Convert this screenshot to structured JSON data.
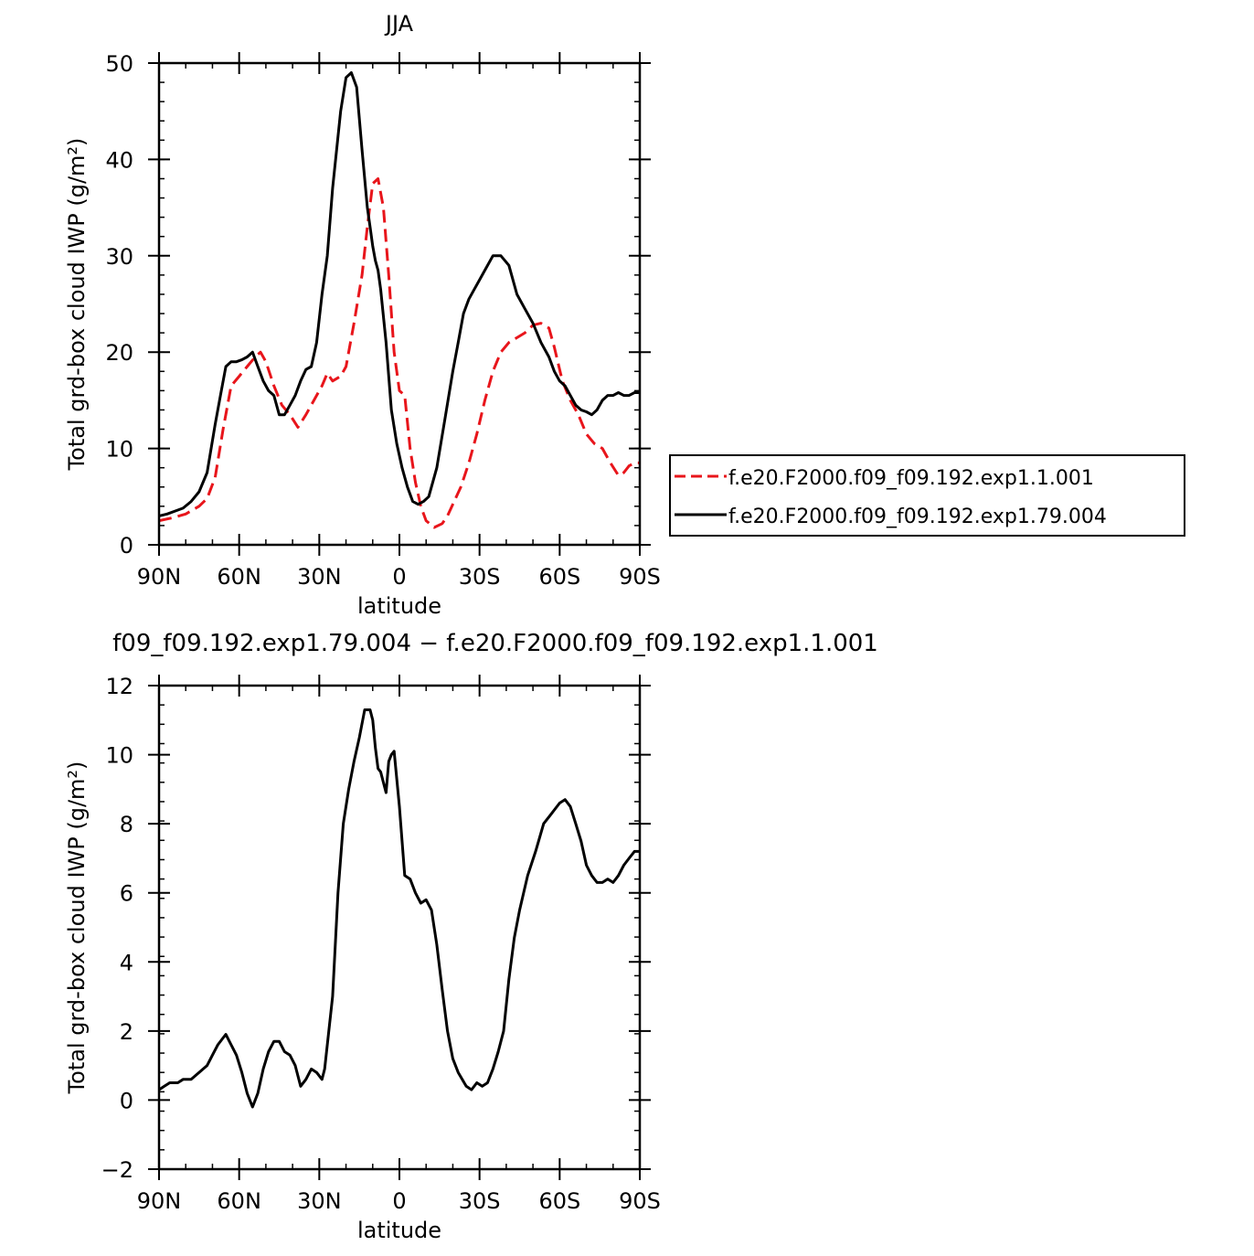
{
  "figure": {
    "top_title": "JJA",
    "bottom_title": "f09_f09.192.exp1.79.004 − f.e20.F2000.f09_f09.192.exp1.1.001"
  },
  "chart_data": [
    {
      "type": "line",
      "title": "JJA",
      "xlabel": "latitude",
      "ylabel": "Total grd-box cloud IWP (g/m²)",
      "xlim": [
        90,
        -90
      ],
      "ylim": [
        0,
        50
      ],
      "xticks": [
        90,
        60,
        30,
        0,
        -30,
        -60,
        -90
      ],
      "xtick_labels": [
        "90N",
        "60N",
        "30N",
        "0",
        "30S",
        "60S",
        "90S"
      ],
      "yticks": [
        0,
        10,
        20,
        30,
        40,
        50
      ],
      "ytick_labels": [
        "0",
        "10",
        "20",
        "30",
        "40",
        "50"
      ],
      "legend_position": "right",
      "series": [
        {
          "name": "f.e20.F2000.f09_f09.192.exp1.1.001",
          "color": "#e8151b",
          "dash": "dashed",
          "x": [
            90,
            85,
            80,
            75,
            72,
            69,
            66,
            63,
            60,
            57,
            54,
            52,
            50,
            47,
            44,
            41,
            38,
            35,
            32,
            29,
            27,
            25,
            22,
            20,
            17,
            14,
            12,
            10,
            8,
            6,
            4,
            2,
            0,
            -2,
            -4,
            -6,
            -8,
            -10,
            -13,
            -16,
            -18,
            -20,
            -23,
            -26,
            -29,
            -32,
            -35,
            -38,
            -41,
            -44,
            -47,
            -50,
            -53,
            -56,
            -58,
            -61,
            -64,
            -67,
            -70,
            -73,
            -76,
            -79,
            -82,
            -84,
            -86,
            -88,
            -90
          ],
          "y": [
            2.5,
            2.8,
            3.2,
            4.0,
            4.8,
            7.0,
            12.0,
            16.5,
            17.5,
            18.5,
            19.5,
            20.0,
            19.0,
            16.5,
            14.5,
            13.5,
            12.2,
            13.5,
            15.0,
            16.5,
            17.8,
            17.0,
            17.5,
            18.5,
            23.0,
            28.0,
            33.0,
            37.5,
            38.0,
            35.0,
            28.0,
            20.0,
            16.0,
            15.5,
            10.0,
            6.5,
            4.0,
            2.5,
            1.8,
            2.2,
            3.0,
            4.2,
            6.0,
            8.5,
            11.5,
            15.0,
            18.0,
            20.0,
            21.0,
            21.5,
            22.0,
            22.8,
            23.0,
            22.5,
            20.5,
            17.0,
            15.0,
            13.5,
            11.5,
            10.5,
            10.0,
            8.5,
            7.2,
            7.5,
            8.2,
            8.5,
            8.5
          ]
        },
        {
          "name": "f.e20.F2000.f09_f09.192.exp1.79.004",
          "color": "#000000",
          "dash": "solid",
          "x": [
            90,
            87,
            84,
            81,
            78,
            75,
            72,
            69,
            67,
            65,
            63,
            61,
            59,
            57,
            55,
            53,
            51,
            49,
            47,
            45,
            43,
            41,
            39,
            37,
            35,
            33,
            31,
            29,
            27,
            25,
            22,
            20,
            18,
            16,
            14,
            12,
            11,
            10,
            9,
            8,
            7,
            5,
            3,
            1,
            -1,
            -3,
            -5,
            -7,
            -9,
            -11,
            -14,
            -17,
            -20,
            -22,
            -24,
            -26,
            -28,
            -30,
            -32,
            -35,
            -38,
            -41,
            -44,
            -47,
            -50,
            -53,
            -56,
            -58,
            -60,
            -62,
            -64,
            -66,
            -68,
            -70,
            -72,
            -74,
            -76,
            -78,
            -80,
            -82,
            -84,
            -86,
            -88,
            -90
          ],
          "y": [
            3.0,
            3.2,
            3.5,
            3.8,
            4.5,
            5.5,
            7.5,
            12.5,
            15.5,
            18.5,
            19.0,
            19.0,
            19.2,
            19.5,
            20.0,
            18.5,
            17.0,
            16.0,
            15.5,
            13.5,
            13.5,
            14.5,
            15.5,
            17.0,
            18.2,
            18.5,
            21.0,
            26.0,
            30.0,
            37.0,
            45.0,
            48.5,
            49.0,
            47.5,
            41.0,
            35.0,
            33.0,
            31.0,
            29.5,
            28.5,
            26.5,
            21.0,
            14.0,
            10.5,
            8.0,
            6.0,
            4.5,
            4.2,
            4.5,
            5.0,
            8.0,
            13.0,
            18.0,
            21.0,
            24.0,
            25.5,
            26.5,
            27.5,
            28.5,
            30.0,
            30.0,
            29.0,
            26.0,
            24.5,
            23.0,
            21.0,
            19.5,
            18.0,
            17.0,
            16.5,
            15.5,
            14.5,
            14.0,
            13.8,
            13.5,
            14.0,
            15.0,
            15.5,
            15.5,
            15.8,
            15.5,
            15.5,
            15.8,
            15.8
          ]
        }
      ]
    },
    {
      "type": "line",
      "title": "f09_f09.192.exp1.79.004 − f.e20.F2000.f09_f09.192.exp1.1.001",
      "xlabel": "latitude",
      "ylabel": "Total grd-box cloud IWP (g/m²)",
      "xlim": [
        90,
        -90
      ],
      "ylim": [
        -2,
        12
      ],
      "xticks": [
        90,
        60,
        30,
        0,
        -30,
        -60,
        -90
      ],
      "xtick_labels": [
        "90N",
        "60N",
        "30N",
        "0",
        "30S",
        "60S",
        "90S"
      ],
      "yticks": [
        -2,
        0,
        2,
        4,
        6,
        8,
        10,
        12
      ],
      "ytick_labels": [
        "−2",
        "0",
        "2",
        "4",
        "6",
        "8",
        "10",
        "12"
      ],
      "series": [
        {
          "color": "#000000",
          "dash": "solid",
          "x": [
            90,
            88,
            86,
            83,
            81,
            78,
            75,
            72,
            70,
            68,
            66,
            65,
            63,
            61,
            59,
            57,
            55,
            53,
            51,
            49,
            47,
            45,
            43,
            41,
            39,
            37,
            35,
            33,
            31,
            29,
            28,
            27,
            25,
            23,
            21,
            19,
            17,
            15,
            13,
            11,
            10,
            9,
            8,
            7,
            5,
            4,
            3,
            2,
            0,
            -2,
            -4,
            -6,
            -8,
            -10,
            -12,
            -14,
            -16,
            -18,
            -20,
            -22,
            -25,
            -27,
            -29,
            -31,
            -33,
            -35,
            -37,
            -39,
            -41,
            -43,
            -45,
            -48,
            -51,
            -54,
            -57,
            -60,
            -62,
            -64,
            -66,
            -68,
            -70,
            -72,
            -74,
            -76,
            -78,
            -80,
            -82,
            -84,
            -86,
            -88,
            -90
          ],
          "y": [
            0.3,
            0.4,
            0.5,
            0.5,
            0.6,
            0.6,
            0.8,
            1.0,
            1.3,
            1.6,
            1.8,
            1.9,
            1.6,
            1.3,
            0.8,
            0.2,
            -0.2,
            0.2,
            0.9,
            1.4,
            1.7,
            1.7,
            1.4,
            1.3,
            1.0,
            0.4,
            0.6,
            0.9,
            0.8,
            0.6,
            0.9,
            1.6,
            3.0,
            6.0,
            8.0,
            9.0,
            9.8,
            10.5,
            11.3,
            11.3,
            11.0,
            10.2,
            9.6,
            9.5,
            8.9,
            9.8,
            10.0,
            10.1,
            8.5,
            6.5,
            6.4,
            6.0,
            5.7,
            5.8,
            5.5,
            4.5,
            3.2,
            2.0,
            1.2,
            0.8,
            0.4,
            0.3,
            0.5,
            0.4,
            0.5,
            0.9,
            1.4,
            2.0,
            3.5,
            4.7,
            5.5,
            6.5,
            7.2,
            8.0,
            8.3,
            8.6,
            8.7,
            8.5,
            8.0,
            7.5,
            6.8,
            6.5,
            6.3,
            6.3,
            6.4,
            6.3,
            6.5,
            6.8,
            7.0,
            7.2,
            7.2
          ]
        }
      ]
    }
  ]
}
